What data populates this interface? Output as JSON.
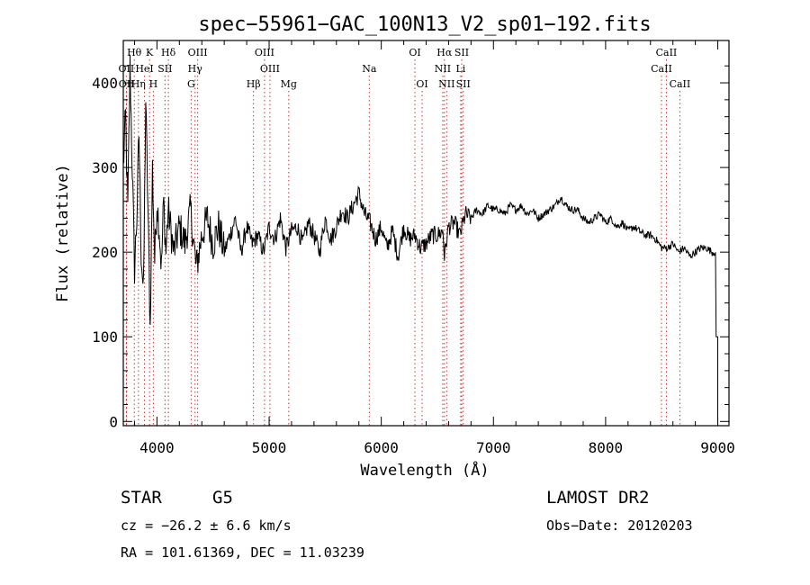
{
  "chart_data": {
    "type": "line",
    "title": "spec−55961−GAC_100N13_V2_sp01−192.fits",
    "xlabel": "Wavelength (Å)",
    "ylabel": "Flux (relative)",
    "xlim": [
      3700,
      9100
    ],
    "ylim": [
      -5,
      450
    ],
    "xticks": [
      4000,
      5000,
      6000,
      7000,
      8000,
      9000
    ],
    "yticks": [
      0,
      100,
      200,
      300,
      400
    ],
    "grid": false,
    "legend": "none",
    "color": "#000000",
    "series": [
      {
        "x": [
          3700,
          3720,
          3740,
          3760,
          3780,
          3800,
          3820,
          3840,
          3860,
          3880,
          3900,
          3920,
          3940,
          3960,
          3980,
          4000,
          4020,
          4040,
          4060,
          4080,
          4100,
          4150,
          4200,
          4250,
          4300,
          4350,
          4400,
          4450,
          4500,
          4550,
          4600,
          4650,
          4700,
          4750,
          4800,
          4850,
          4900,
          4950,
          5000,
          5050,
          5100,
          5150,
          5200,
          5250,
          5300,
          5350,
          5400,
          5450,
          5500,
          5550,
          5600,
          5650,
          5700,
          5750,
          5800,
          5850,
          5900,
          5950,
          6000,
          6050,
          6100,
          6150,
          6200,
          6250,
          6300,
          6350,
          6400,
          6450,
          6500,
          6550,
          6563,
          6600,
          6650,
          6700,
          6750,
          6800,
          6850,
          6900,
          6950,
          7000,
          7050,
          7100,
          7150,
          7200,
          7250,
          7300,
          7350,
          7400,
          7450,
          7500,
          7550,
          7600,
          7650,
          7700,
          7750,
          7800,
          7850,
          7900,
          7950,
          8000,
          8050,
          8100,
          8150,
          8200,
          8250,
          8300,
          8350,
          8400,
          8450,
          8500,
          8550,
          8600,
          8650,
          8700,
          8750,
          8800,
          8850,
          8900,
          8950,
          8980,
          8985,
          9000
        ],
        "y": [
          300,
          360,
          250,
          420,
          300,
          180,
          240,
          340,
          200,
          150,
          380,
          250,
          110,
          300,
          190,
          260,
          230,
          180,
          260,
          200,
          250,
          200,
          230,
          210,
          250,
          180,
          220,
          240,
          210,
          230,
          200,
          220,
          240,
          200,
          230,
          210,
          220,
          200,
          230,
          215,
          240,
          205,
          225,
          230,
          210,
          235,
          220,
          200,
          240,
          215,
          230,
          250,
          240,
          255,
          270,
          245,
          235,
          215,
          230,
          205,
          225,
          195,
          230,
          215,
          220,
          205,
          210,
          220,
          220,
          225,
          195,
          230,
          235,
          220,
          245,
          240,
          250,
          245,
          255,
          250,
          250,
          245,
          255,
          250,
          255,
          245,
          250,
          240,
          245,
          250,
          255,
          265,
          255,
          250,
          250,
          240,
          235,
          240,
          245,
          235,
          240,
          230,
          235,
          225,
          230,
          225,
          220,
          220,
          215,
          205,
          205,
          210,
          200,
          205,
          195,
          200,
          205,
          205,
          200,
          200,
          100,
          100
        ]
      }
    ],
    "spectral_lines": [
      {
        "label": "Hθ",
        "wavelength": 3798,
        "row": 1
      },
      {
        "label": "K",
        "wavelength": 3934,
        "row": 1
      },
      {
        "label": "Hδ",
        "wavelength": 4102,
        "row": 1
      },
      {
        "label": "OIII",
        "wavelength": 4363,
        "row": 1
      },
      {
        "label": "OIII",
        "wavelength": 4959,
        "row": 1
      },
      {
        "label": "OI",
        "wavelength": 6300,
        "row": 1
      },
      {
        "label": "Hα",
        "wavelength": 6563,
        "row": 1
      },
      {
        "label": "SII",
        "wavelength": 6717,
        "row": 1
      },
      {
        "label": "CaII",
        "wavelength": 8542,
        "row": 1
      },
      {
        "label": "OII",
        "wavelength": 3727,
        "row": 2
      },
      {
        "label": "HeI",
        "wavelength": 3889,
        "row": 2
      },
      {
        "label": "SII",
        "wavelength": 4072,
        "row": 2
      },
      {
        "label": "Hγ",
        "wavelength": 4340,
        "row": 2
      },
      {
        "label": "OIII",
        "wavelength": 5007,
        "row": 2
      },
      {
        "label": "Na",
        "wavelength": 5893,
        "row": 2
      },
      {
        "label": "NII",
        "wavelength": 6548,
        "row": 2
      },
      {
        "label": "Li",
        "wavelength": 6708,
        "row": 2
      },
      {
        "label": "CaII",
        "wavelength": 8498,
        "row": 2
      },
      {
        "label": "OII",
        "wavelength": 3729,
        "row": 3
      },
      {
        "label": "Hη",
        "wavelength": 3835,
        "row": 3
      },
      {
        "label": "H",
        "wavelength": 3968,
        "row": 3
      },
      {
        "label": "G",
        "wavelength": 4305,
        "row": 3
      },
      {
        "label": "Hβ",
        "wavelength": 4861,
        "row": 3
      },
      {
        "label": "Mg",
        "wavelength": 5175,
        "row": 3
      },
      {
        "label": "OI",
        "wavelength": 6364,
        "row": 3
      },
      {
        "label": "NII",
        "wavelength": 6583,
        "row": 3
      },
      {
        "label": "SII",
        "wavelength": 6731,
        "row": 3
      },
      {
        "label": "CaII",
        "wavelength": 8662,
        "row": 3
      }
    ]
  },
  "info": {
    "class": "STAR",
    "subclass": "G5",
    "survey": "LAMOST DR2",
    "cz": "cz = −26.2 ± 6.6 km/s",
    "obs_date": "Obs−Date: 20120203",
    "coords": "RA = 101.61369, DEC =  11.03239"
  }
}
